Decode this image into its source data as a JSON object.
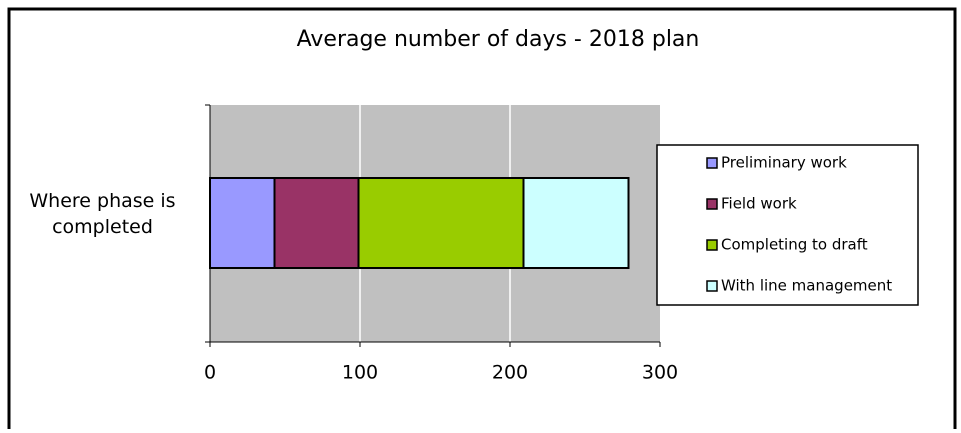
{
  "chart_data": {
    "type": "stacked-bar-horizontal",
    "title": "Average number of days - 2018 plan",
    "categories": [
      "Where phase is completed"
    ],
    "series": [
      {
        "name": "Preliminary work",
        "color": "#9999ff",
        "values": [
          43
        ]
      },
      {
        "name": "Field work",
        "color": "#993366",
        "values": [
          56
        ]
      },
      {
        "name": "Completing to draft",
        "color": "#99cc00",
        "values": [
          110
        ]
      },
      {
        "name": "With line management",
        "color": "#ccffff",
        "values": [
          70
        ]
      }
    ],
    "xlim": [
      0,
      300
    ],
    "xticks": [
      0,
      100,
      200,
      300
    ],
    "grid": true,
    "legend": "right"
  }
}
